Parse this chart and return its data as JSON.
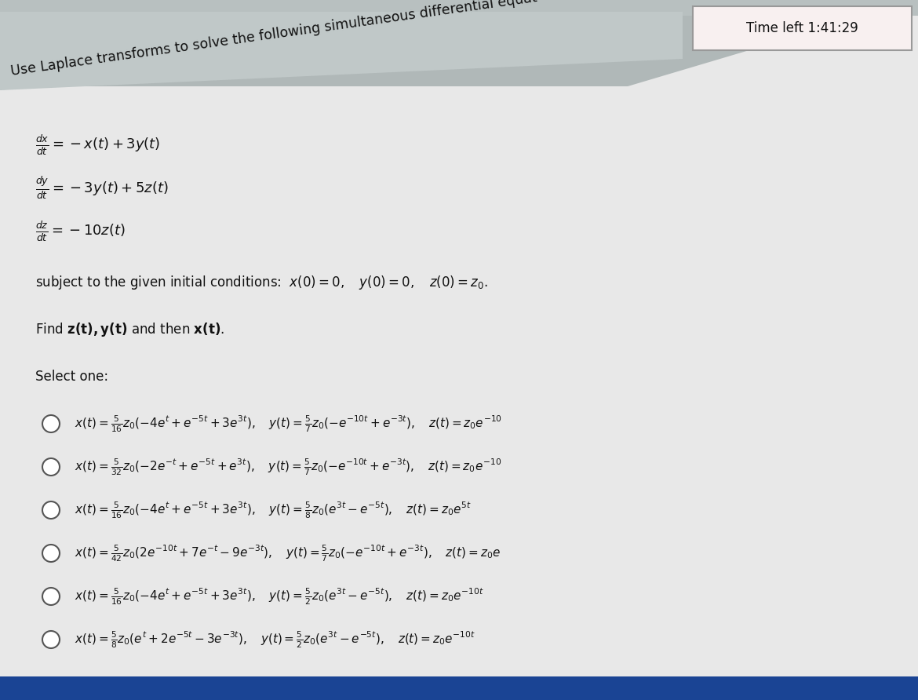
{
  "bg_color": "#c8c8c8",
  "content_bg": "#e8e8e8",
  "title_text": "Use Laplace transforms to solve the following simultaneous differential equat",
  "timer_text": "Time left 1:41:29",
  "eq1": "$\\frac{dx}{dt} = -x(t) + 3y(t)$",
  "eq2": "$\\frac{dy}{dt} = -3y(t) + 5z(t)$",
  "eq3": "$\\frac{dz}{dt} = -10z(t)$",
  "conditions_text": "subject to the given initial conditions:  $x(0) = 0, \\quad y(0) = 0, \\quad z(0) = z_0.$",
  "find_text": "Find $\\mathbf{z(t), y(t)}$ and then $\\mathbf{x(t)}$.",
  "select_text": "Select one:",
  "options": [
    "$x(t) = \\frac{5}{16}z_0(-4e^{t}+e^{-5t}+3e^{3t}), \\quad y(t) = \\frac{5}{7}z_0(-e^{-10t}+e^{-3t}), \\quad z(t) = z_0e^{-10}$",
    "$x(t) = \\frac{5}{32}z_0(-2e^{-t}+e^{-5t}+e^{3t}), \\quad y(t) = \\frac{5}{7}z_0(-e^{-10t}+e^{-3t}), \\quad z(t) = z_0e^{-10}$",
    "$x(t) = \\frac{5}{16}z_0(-4e^{t}+e^{-5t}+3e^{3t}), \\quad y(t) = \\frac{5}{8}z_0(e^{3t}-e^{-5t}), \\quad z(t) = z_0e^{5t}$",
    "$x(t) = \\frac{5}{42}z_0(2e^{-10t}+7e^{-t}-9e^{-3t}), \\quad y(t) = \\frac{5}{7}z_0(-e^{-10t}+e^{-3t}), \\quad z(t) = z_0e$",
    "$x(t) = \\frac{5}{16}z_0(-4e^{t}+e^{-5t}+3e^{3t}), \\quad y(t) = \\frac{5}{2}z_0(e^{3t}-e^{-5t}), \\quad z(t) = z_0e^{-10t}$",
    "$x(t) = \\frac{5}{8}z_0(e^{t}+2e^{-5t}-3e^{-3t}), \\quad y(t) = \\frac{5}{2}z_0(e^{3t}-e^{-5t}), \\quad z(t) = z_0e^{-10t}$"
  ],
  "text_color": "#111111",
  "option_font_size": 11.0,
  "eq_font_size": 13,
  "title_font_size": 12.5,
  "timer_font_size": 12,
  "band_color": "#b0b8b8",
  "timer_bg": "#f8f0f0",
  "timer_border": "#999999"
}
